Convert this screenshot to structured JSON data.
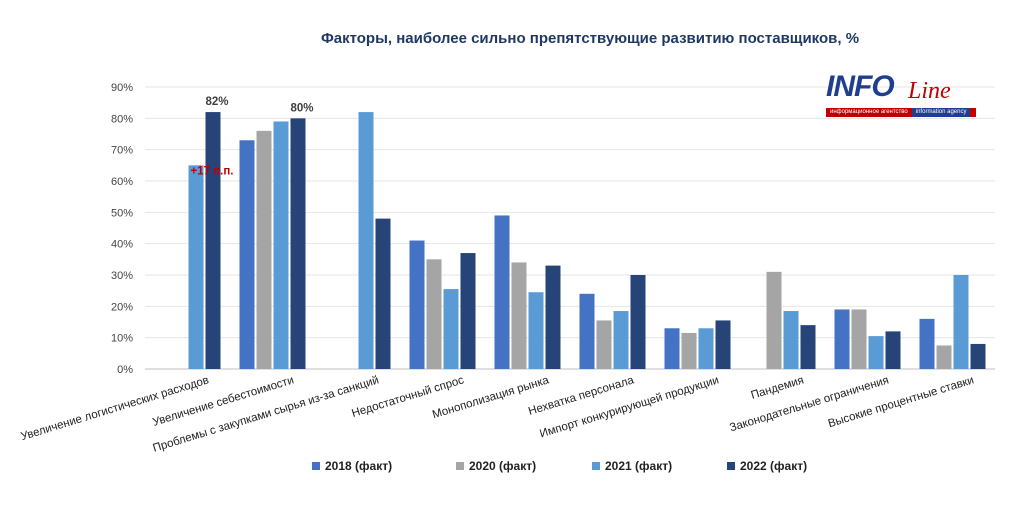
{
  "chart_data": {
    "type": "bar",
    "title": "Факторы, наиболее сильно препятствующие развитию поставщиков, %",
    "categories": [
      "Увеличение логистических расходов",
      "Увеличение себестоимости",
      "Проблемы с закупками сырья из-за санкций",
      "Недостаточный спрос",
      "Монополизация рынка",
      "Нехватка персонала",
      "Импорт конкурирующей продукции",
      "Пандемия",
      "Законодательные ограничения",
      "Высокие процентные ставки"
    ],
    "series": [
      {
        "name": "2018 (факт)",
        "color": "#4472c4",
        "values": [
          null,
          73,
          null,
          41,
          49,
          24,
          13,
          null,
          19,
          16
        ]
      },
      {
        "name": "2020 (факт)",
        "color": "#a5a5a5",
        "values": [
          null,
          76,
          null,
          35,
          34,
          15.5,
          11.5,
          31,
          19,
          7.5
        ]
      },
      {
        "name": "2021 (факт)",
        "color": "#5b9bd5",
        "values": [
          65,
          79,
          82,
          25.5,
          24.5,
          18.5,
          13,
          18.5,
          10.5,
          30
        ]
      },
      {
        "name": "2022 (факт)",
        "color": "#264478",
        "values": [
          82,
          80,
          48,
          37,
          33,
          30,
          15.5,
          14,
          12,
          8
        ]
      }
    ],
    "ylim": [
      0,
      90
    ],
    "yticks": [
      "0%",
      "10%",
      "20%",
      "30%",
      "40%",
      "50%",
      "60%",
      "70%",
      "80%",
      "90%"
    ],
    "xlabel": "",
    "ylabel": "",
    "annotations": [
      {
        "category_index": 0,
        "series_index": 3,
        "text": "82%",
        "color": "#404040"
      },
      {
        "category_index": 1,
        "series_index": 3,
        "text": "80%",
        "color": "#404040"
      },
      {
        "category_index": 0,
        "series_index": 2,
        "text": "+17 п.п.",
        "color": "#c00000"
      }
    ],
    "legend_position": "bottom"
  },
  "logo": {
    "brand_main": "INFO",
    "brand_script": "Line",
    "tagline_ru": "информационное агентство",
    "tagline_en": "information agency"
  }
}
